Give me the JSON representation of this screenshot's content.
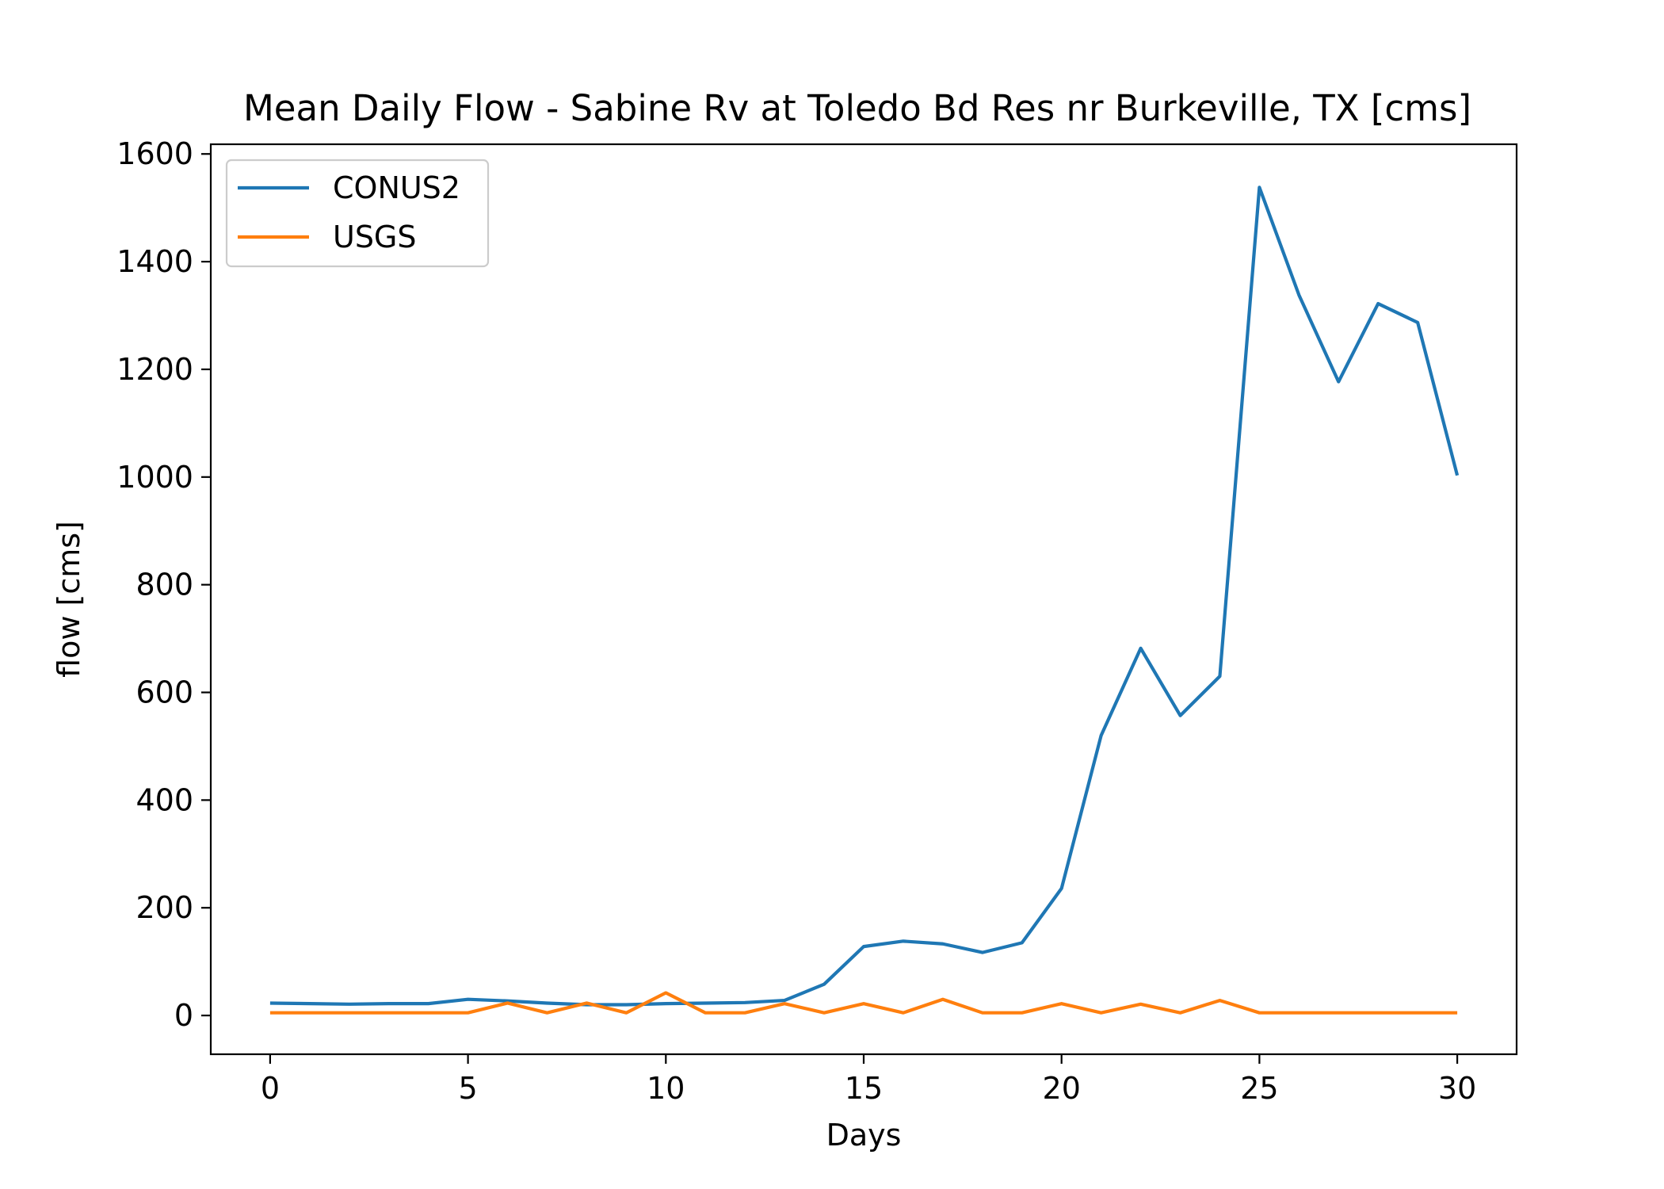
{
  "chart_data": {
    "type": "line",
    "title": "Mean Daily Flow - Sabine Rv at Toledo Bd Res nr Burkeville, TX [cms]",
    "xlabel": "Days",
    "ylabel": "flow [cms]",
    "xlim": [
      -1.5,
      31.5
    ],
    "ylim": [
      -72,
      1618
    ],
    "x": [
      0,
      1,
      2,
      3,
      4,
      5,
      6,
      7,
      8,
      9,
      10,
      11,
      12,
      13,
      14,
      15,
      16,
      17,
      18,
      19,
      20,
      21,
      22,
      23,
      24,
      25,
      26,
      27,
      28,
      29,
      30
    ],
    "xticks": [
      0,
      5,
      10,
      15,
      20,
      25,
      30
    ],
    "xtick_labels": [
      "0",
      "5",
      "10",
      "15",
      "20",
      "25",
      "30"
    ],
    "yticks": [
      0,
      200,
      400,
      600,
      800,
      1000,
      1200,
      1400,
      1600
    ],
    "ytick_labels": [
      "0",
      "200",
      "400",
      "600",
      "800",
      "1000",
      "1200",
      "1400",
      "1600"
    ],
    "grid": false,
    "legend_position": "top-left",
    "series": [
      {
        "name": "CONUS2",
        "color": "#1f77b4",
        "values": [
          23,
          22,
          21,
          22,
          22,
          30,
          27,
          23,
          20,
          20,
          22,
          23,
          24,
          28,
          58,
          128,
          138,
          133,
          117,
          135,
          236,
          520,
          682,
          557,
          630,
          1538,
          1338,
          1177,
          1322,
          1287,
          1003
        ]
      },
      {
        "name": "USGS",
        "color": "#ff7f0e",
        "values": [
          5,
          5,
          5,
          5,
          5,
          5,
          23,
          5,
          23,
          5,
          42,
          5,
          5,
          22,
          5,
          22,
          5,
          30,
          5,
          5,
          22,
          5,
          21,
          5,
          28,
          5,
          5,
          5,
          5,
          5,
          5
        ]
      }
    ]
  }
}
